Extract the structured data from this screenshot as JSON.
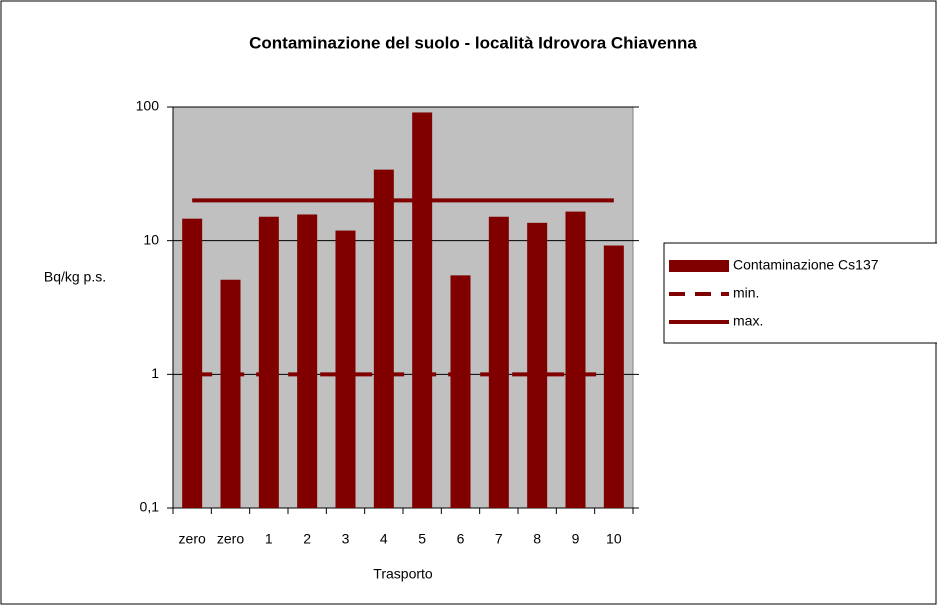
{
  "chart_data": {
    "type": "bar",
    "title": "Contaminazione del suolo - località Idrovora Chiavenna",
    "x_label": "Trasporto",
    "y_label": "Bq/kg p.s.",
    "categories": [
      "zero",
      "zero",
      "1",
      "2",
      "3",
      "4",
      "5",
      "6",
      "7",
      "8",
      "9",
      "10"
    ],
    "series": [
      {
        "name": "Contaminazione Cs137",
        "type": "bar",
        "color": "#800000",
        "values": [
          14.6,
          5.1,
          15.1,
          15.7,
          11.9,
          34,
          91,
          5.5,
          15.1,
          13.6,
          16.5,
          9.2
        ]
      },
      {
        "name": "min.",
        "type": "line",
        "dashed": true,
        "color": "#800000",
        "values": [
          1,
          1,
          1,
          1,
          1,
          1,
          1,
          1,
          1,
          1,
          1,
          1
        ]
      },
      {
        "name": "max.",
        "type": "line",
        "dashed": false,
        "color": "#800000",
        "values": [
          20,
          20,
          20,
          20,
          20,
          20,
          20,
          20,
          20,
          20,
          20,
          20
        ]
      }
    ],
    "ylim": [
      0.1,
      100
    ],
    "yticks": [
      {
        "value": 0.1,
        "label": "0,1"
      },
      1,
      10,
      100
    ],
    "log_scale": true,
    "grid": true,
    "plot_background": "#c0c0c0",
    "legend": "right"
  }
}
